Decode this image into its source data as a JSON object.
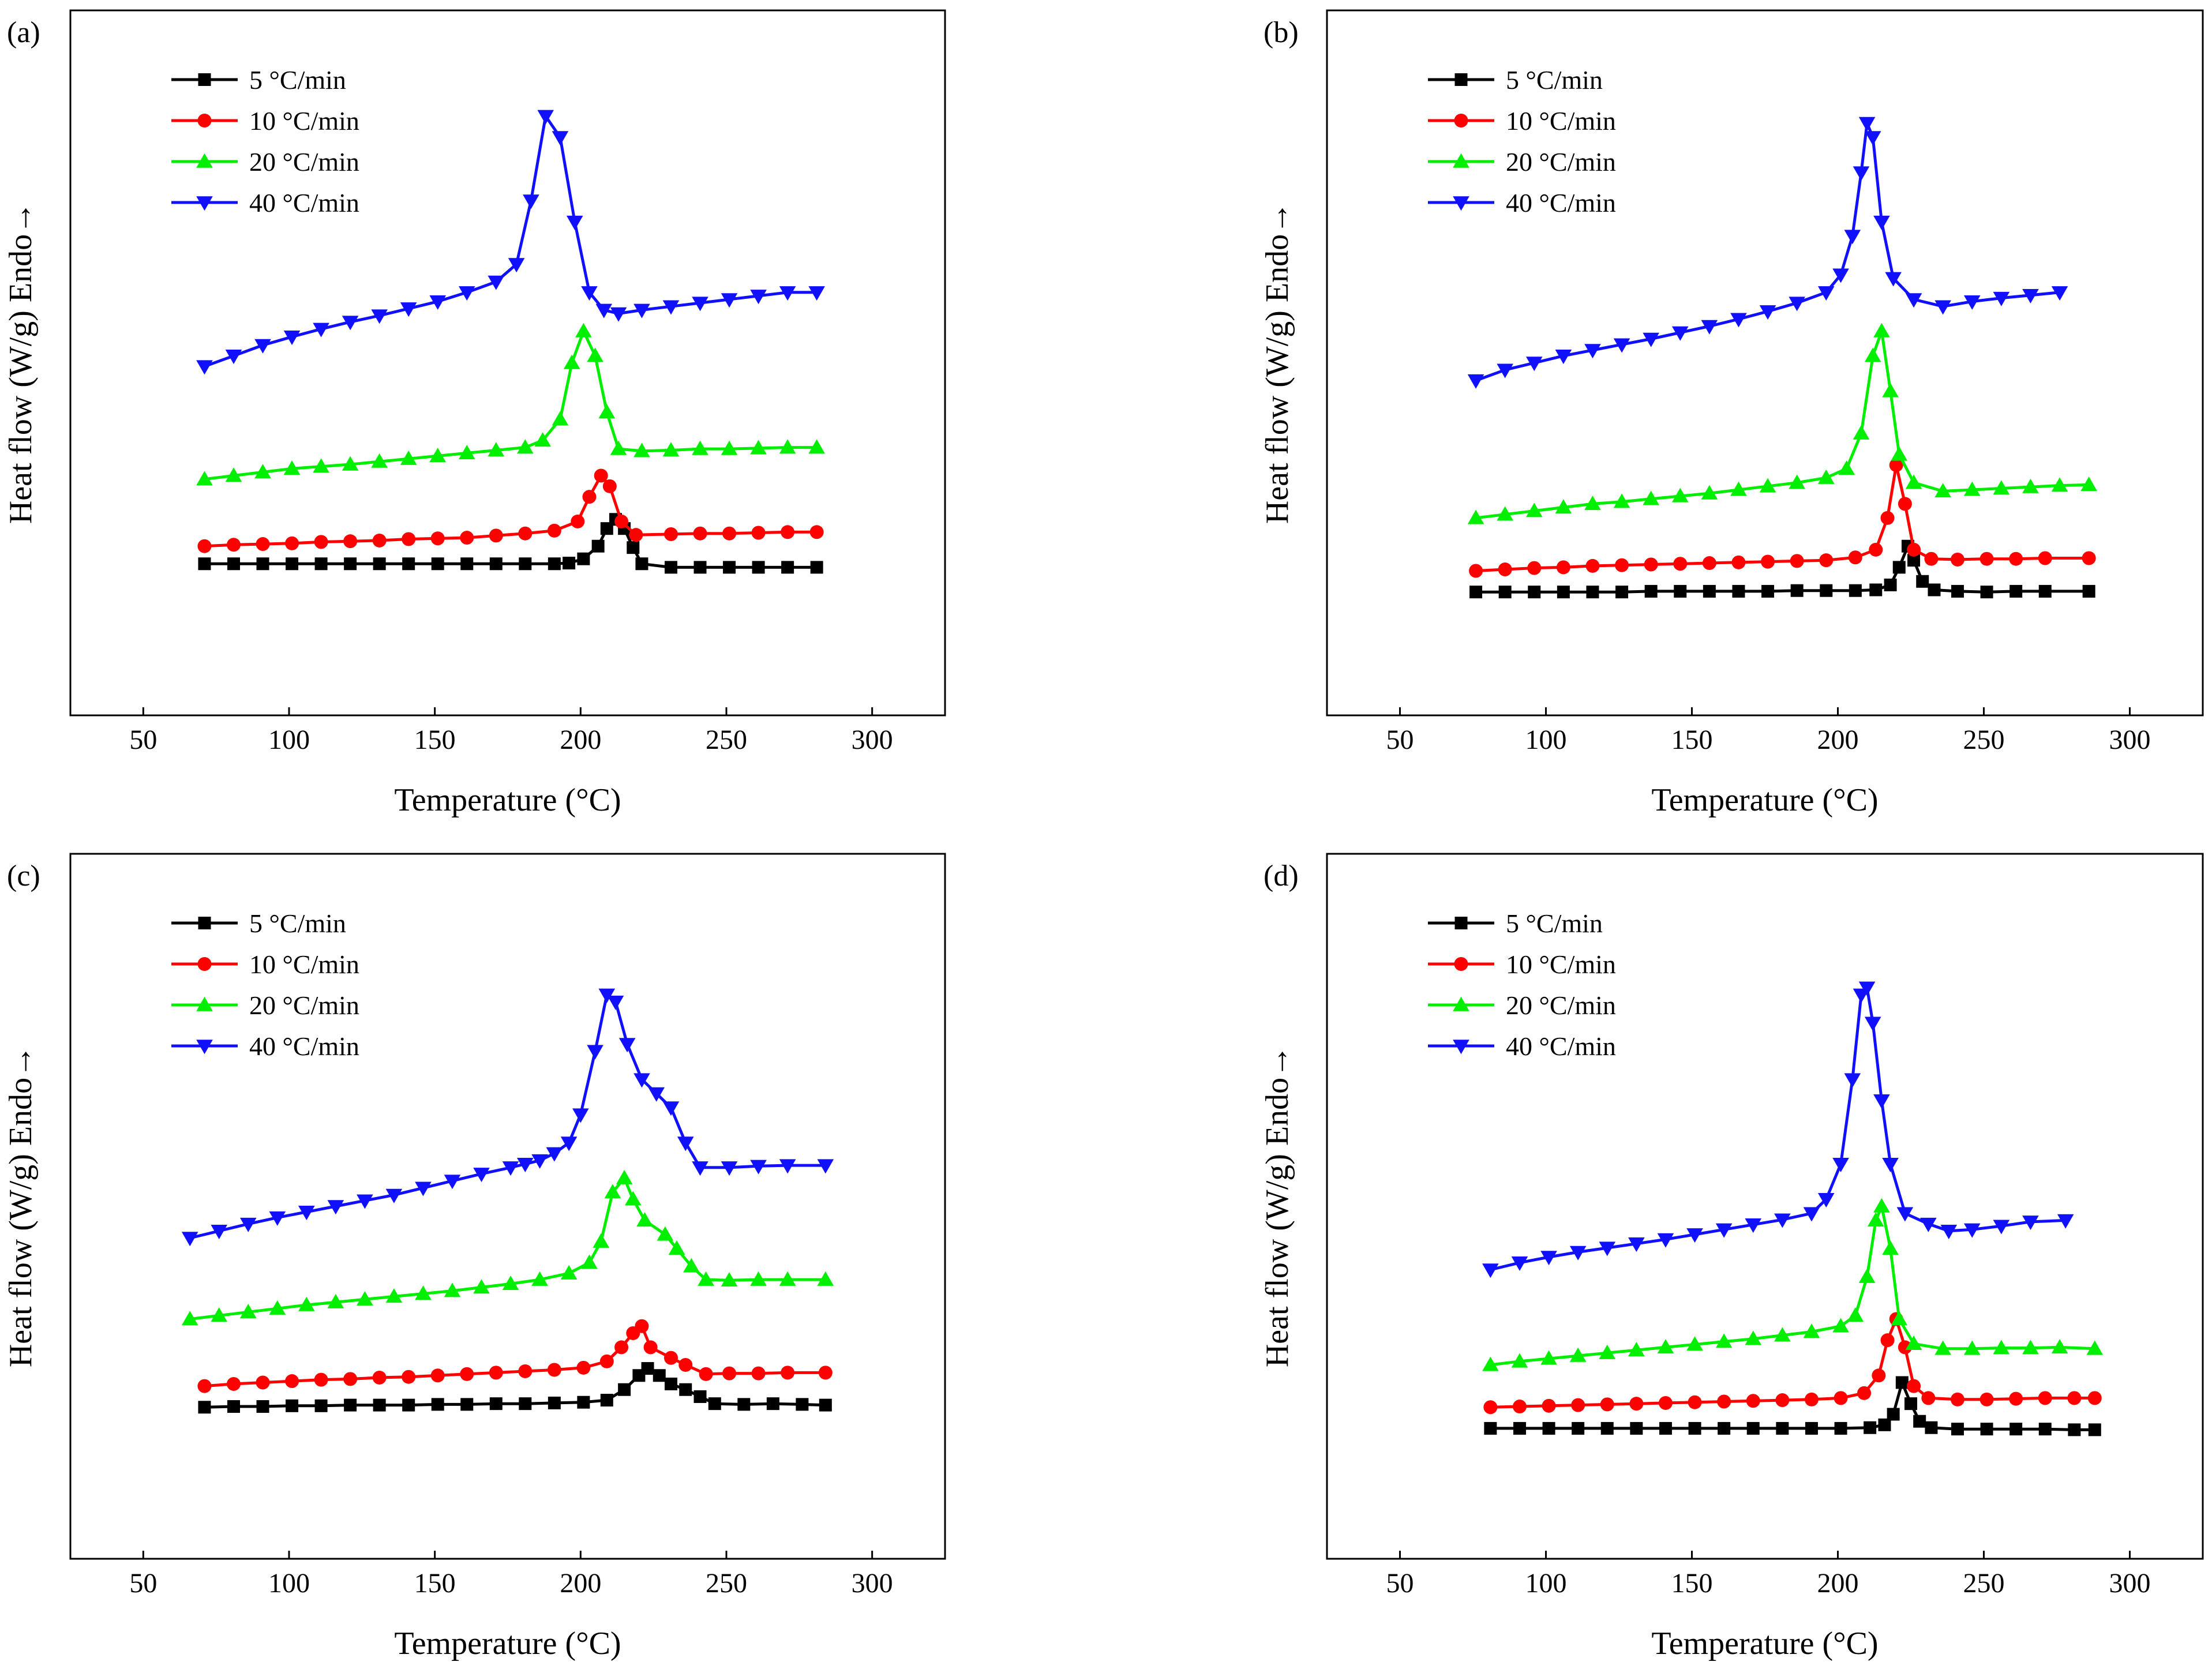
{
  "figure": {
    "layout": "2x2 grid of DSC heating curves"
  },
  "colors": {
    "black": "#000000",
    "red": "#ff0000",
    "green": "#00ee00",
    "blue": "#1010ff"
  },
  "chart_data": [
    {
      "panel": "(a)",
      "type": "line",
      "xlabel": "Temperature (°C)",
      "ylabel": "Heat flow (W/g) Endo→",
      "xlim": [
        25,
        325
      ],
      "xticks": [
        50,
        100,
        150,
        200,
        250,
        300
      ],
      "ylim": [
        0,
        1
      ],
      "y_ticks_shown": false,
      "legend_position": "top-left",
      "series": [
        {
          "name": "5 °C/min",
          "color": "black",
          "marker": "square",
          "x": [
            71,
            81,
            91,
            101,
            111,
            121,
            131,
            141,
            151,
            161,
            171,
            181,
            191,
            196,
            201,
            206,
            209,
            212,
            215,
            218,
            221,
            231,
            241,
            251,
            261,
            271,
            281
          ],
          "y": [
            0.215,
            0.215,
            0.215,
            0.215,
            0.215,
            0.215,
            0.215,
            0.215,
            0.215,
            0.215,
            0.215,
            0.215,
            0.215,
            0.216,
            0.222,
            0.24,
            0.265,
            0.278,
            0.265,
            0.238,
            0.215,
            0.21,
            0.21,
            0.21,
            0.21,
            0.21,
            0.21
          ]
        },
        {
          "name": "10 °C/min",
          "color": "red",
          "marker": "circle",
          "x": [
            71,
            81,
            91,
            101,
            111,
            121,
            131,
            141,
            151,
            161,
            171,
            181,
            191,
            199,
            203,
            207,
            210,
            214,
            219,
            231,
            241,
            251,
            261,
            271,
            281
          ],
          "y": [
            0.24,
            0.242,
            0.243,
            0.244,
            0.246,
            0.247,
            0.248,
            0.25,
            0.251,
            0.252,
            0.255,
            0.258,
            0.262,
            0.275,
            0.31,
            0.34,
            0.325,
            0.275,
            0.256,
            0.257,
            0.258,
            0.258,
            0.259,
            0.26,
            0.26
          ]
        },
        {
          "name": "20 °C/min",
          "color": "green",
          "marker": "triangle-up",
          "x": [
            71,
            81,
            91,
            101,
            111,
            121,
            131,
            141,
            151,
            161,
            171,
            181,
            187,
            193,
            197,
            201,
            205,
            209,
            213,
            221,
            231,
            241,
            251,
            261,
            271,
            281
          ],
          "y": [
            0.335,
            0.34,
            0.345,
            0.35,
            0.353,
            0.356,
            0.36,
            0.364,
            0.368,
            0.372,
            0.376,
            0.38,
            0.39,
            0.42,
            0.5,
            0.545,
            0.51,
            0.43,
            0.378,
            0.375,
            0.376,
            0.378,
            0.378,
            0.379,
            0.38,
            0.38
          ]
        },
        {
          "name": "40 °C/min",
          "color": "blue",
          "marker": "triangle-down",
          "x": [
            71,
            81,
            91,
            101,
            111,
            121,
            131,
            141,
            151,
            161,
            171,
            178,
            183,
            188,
            193,
            198,
            203,
            208,
            213,
            221,
            231,
            241,
            251,
            261,
            271,
            281
          ],
          "y": [
            0.495,
            0.51,
            0.525,
            0.537,
            0.548,
            0.558,
            0.567,
            0.577,
            0.587,
            0.6,
            0.615,
            0.64,
            0.73,
            0.85,
            0.82,
            0.7,
            0.6,
            0.575,
            0.57,
            0.575,
            0.58,
            0.585,
            0.59,
            0.595,
            0.6,
            0.6
          ]
        }
      ]
    },
    {
      "panel": "(b)",
      "type": "line",
      "xlabel": "Temperature (°C)",
      "ylabel": "Heat flow (W/g) Endo→",
      "xlim": [
        25,
        325
      ],
      "xticks": [
        50,
        100,
        150,
        200,
        250,
        300
      ],
      "ylim": [
        0,
        1
      ],
      "y_ticks_shown": false,
      "legend_position": "top-left",
      "series": [
        {
          "name": "5 °C/min",
          "color": "black",
          "marker": "square",
          "x": [
            76,
            86,
            96,
            106,
            116,
            126,
            136,
            146,
            156,
            166,
            176,
            186,
            196,
            206,
            213,
            218,
            221,
            224,
            226,
            229,
            233,
            241,
            251,
            261,
            271,
            286
          ],
          "y": [
            0.175,
            0.175,
            0.175,
            0.175,
            0.175,
            0.175,
            0.176,
            0.176,
            0.176,
            0.176,
            0.176,
            0.177,
            0.177,
            0.177,
            0.178,
            0.185,
            0.21,
            0.24,
            0.22,
            0.19,
            0.178,
            0.176,
            0.175,
            0.176,
            0.176,
            0.176
          ]
        },
        {
          "name": "10 °C/min",
          "color": "red",
          "marker": "circle",
          "x": [
            76,
            86,
            96,
            106,
            116,
            126,
            136,
            146,
            156,
            166,
            176,
            186,
            196,
            206,
            213,
            217,
            220,
            223,
            226,
            232,
            241,
            251,
            261,
            271,
            286
          ],
          "y": [
            0.205,
            0.207,
            0.209,
            0.21,
            0.212,
            0.213,
            0.214,
            0.215,
            0.216,
            0.217,
            0.218,
            0.219,
            0.22,
            0.224,
            0.235,
            0.28,
            0.355,
            0.3,
            0.235,
            0.222,
            0.221,
            0.222,
            0.222,
            0.223,
            0.223
          ]
        },
        {
          "name": "20 °C/min",
          "color": "green",
          "marker": "triangle-up",
          "x": [
            76,
            86,
            96,
            106,
            116,
            126,
            136,
            146,
            156,
            166,
            176,
            186,
            196,
            203,
            208,
            212,
            215,
            218,
            221,
            226,
            236,
            246,
            256,
            266,
            276,
            286
          ],
          "y": [
            0.28,
            0.285,
            0.29,
            0.295,
            0.3,
            0.303,
            0.307,
            0.311,
            0.315,
            0.32,
            0.325,
            0.33,
            0.337,
            0.35,
            0.4,
            0.51,
            0.545,
            0.46,
            0.37,
            0.33,
            0.318,
            0.32,
            0.322,
            0.324,
            0.326,
            0.327
          ]
        },
        {
          "name": "40 °C/min",
          "color": "blue",
          "marker": "triangle-down",
          "x": [
            76,
            86,
            96,
            106,
            116,
            126,
            136,
            146,
            156,
            166,
            176,
            186,
            196,
            201,
            205,
            208,
            210,
            212,
            215,
            219,
            226,
            236,
            246,
            256,
            266,
            276
          ],
          "y": [
            0.475,
            0.49,
            0.5,
            0.51,
            0.518,
            0.526,
            0.534,
            0.543,
            0.552,
            0.562,
            0.573,
            0.585,
            0.6,
            0.625,
            0.68,
            0.77,
            0.84,
            0.82,
            0.7,
            0.62,
            0.59,
            0.58,
            0.587,
            0.592,
            0.596,
            0.6
          ]
        }
      ]
    },
    {
      "panel": "(c)",
      "type": "line",
      "xlabel": "Temperature (°C)",
      "ylabel": "Heat flow (W/g) Endo→",
      "xlim": [
        25,
        325
      ],
      "xticks": [
        50,
        100,
        150,
        200,
        250,
        300
      ],
      "ylim": [
        0,
        1
      ],
      "y_ticks_shown": false,
      "legend_position": "top-left",
      "series": [
        {
          "name": "5 °C/min",
          "color": "black",
          "marker": "square",
          "x": [
            71,
            81,
            91,
            101,
            111,
            121,
            131,
            141,
            151,
            161,
            171,
            181,
            191,
            201,
            209,
            215,
            220,
            223,
            227,
            231,
            236,
            241,
            246,
            256,
            266,
            276,
            284
          ],
          "y": [
            0.215,
            0.216,
            0.216,
            0.217,
            0.217,
            0.218,
            0.218,
            0.218,
            0.219,
            0.219,
            0.22,
            0.22,
            0.221,
            0.222,
            0.225,
            0.24,
            0.26,
            0.27,
            0.26,
            0.248,
            0.24,
            0.23,
            0.22,
            0.219,
            0.22,
            0.219,
            0.218
          ]
        },
        {
          "name": "10 °C/min",
          "color": "red",
          "marker": "circle",
          "x": [
            71,
            81,
            91,
            101,
            111,
            121,
            131,
            141,
            151,
            161,
            171,
            181,
            191,
            201,
            209,
            214,
            218,
            221,
            224,
            231,
            236,
            243,
            251,
            261,
            271,
            284
          ],
          "y": [
            0.245,
            0.248,
            0.25,
            0.252,
            0.254,
            0.255,
            0.257,
            0.258,
            0.26,
            0.262,
            0.264,
            0.266,
            0.268,
            0.271,
            0.28,
            0.3,
            0.32,
            0.33,
            0.3,
            0.285,
            0.275,
            0.262,
            0.263,
            0.263,
            0.264,
            0.264
          ]
        },
        {
          "name": "20 °C/min",
          "color": "green",
          "marker": "triangle-up",
          "x": [
            66,
            76,
            86,
            96,
            106,
            116,
            126,
            136,
            146,
            156,
            166,
            176,
            186,
            196,
            203,
            207,
            211,
            215,
            218,
            222,
            229,
            233,
            238,
            243,
            251,
            261,
            271,
            284
          ],
          "y": [
            0.34,
            0.345,
            0.35,
            0.355,
            0.36,
            0.364,
            0.368,
            0.372,
            0.376,
            0.38,
            0.385,
            0.39,
            0.396,
            0.405,
            0.42,
            0.45,
            0.52,
            0.54,
            0.51,
            0.48,
            0.46,
            0.44,
            0.415,
            0.396,
            0.395,
            0.396,
            0.396,
            0.396
          ]
        },
        {
          "name": "40 °C/min",
          "color": "blue",
          "marker": "triangle-down",
          "x": [
            66,
            76,
            86,
            96,
            106,
            116,
            126,
            136,
            146,
            156,
            166,
            176,
            181,
            186,
            191,
            196,
            200,
            205,
            209,
            212,
            216,
            221,
            226,
            231,
            236,
            241,
            251,
            261,
            271,
            284
          ],
          "y": [
            0.455,
            0.465,
            0.475,
            0.484,
            0.492,
            0.5,
            0.508,
            0.516,
            0.526,
            0.536,
            0.546,
            0.555,
            0.56,
            0.565,
            0.575,
            0.59,
            0.63,
            0.72,
            0.8,
            0.79,
            0.73,
            0.68,
            0.66,
            0.64,
            0.59,
            0.555,
            0.555,
            0.557,
            0.558,
            0.558
          ]
        }
      ]
    },
    {
      "panel": "(d)",
      "type": "line",
      "xlabel": "Temperature (°C)",
      "ylabel": "Heat flow (W/g) Endo→",
      "xlim": [
        25,
        325
      ],
      "xticks": [
        50,
        100,
        150,
        200,
        250,
        300
      ],
      "ylim": [
        0,
        1
      ],
      "y_ticks_shown": false,
      "legend_position": "top-left",
      "series": [
        {
          "name": "5 °C/min",
          "color": "black",
          "marker": "square",
          "x": [
            81,
            91,
            101,
            111,
            121,
            131,
            141,
            151,
            161,
            171,
            181,
            191,
            201,
            211,
            216,
            219,
            222,
            225,
            228,
            232,
            241,
            251,
            261,
            271,
            281,
            288
          ],
          "y": [
            0.185,
            0.185,
            0.185,
            0.185,
            0.185,
            0.185,
            0.185,
            0.185,
            0.185,
            0.185,
            0.185,
            0.185,
            0.185,
            0.186,
            0.19,
            0.205,
            0.25,
            0.22,
            0.195,
            0.186,
            0.184,
            0.184,
            0.184,
            0.184,
            0.183,
            0.183
          ]
        },
        {
          "name": "10 °C/min",
          "color": "red",
          "marker": "circle",
          "x": [
            81,
            91,
            101,
            111,
            121,
            131,
            141,
            151,
            161,
            171,
            181,
            191,
            201,
            209,
            214,
            217,
            220,
            223,
            226,
            231,
            241,
            251,
            261,
            271,
            281,
            288
          ],
          "y": [
            0.215,
            0.216,
            0.217,
            0.218,
            0.219,
            0.22,
            0.221,
            0.222,
            0.223,
            0.224,
            0.225,
            0.226,
            0.228,
            0.235,
            0.26,
            0.31,
            0.34,
            0.3,
            0.245,
            0.228,
            0.226,
            0.226,
            0.227,
            0.228,
            0.228,
            0.228
          ]
        },
        {
          "name": "20 °C/min",
          "color": "green",
          "marker": "triangle-up",
          "x": [
            81,
            91,
            101,
            111,
            121,
            131,
            141,
            151,
            161,
            171,
            181,
            191,
            201,
            206,
            210,
            213,
            215,
            218,
            221,
            226,
            236,
            246,
            256,
            266,
            276,
            288
          ],
          "y": [
            0.275,
            0.28,
            0.284,
            0.288,
            0.292,
            0.296,
            0.3,
            0.304,
            0.308,
            0.312,
            0.317,
            0.322,
            0.33,
            0.345,
            0.4,
            0.48,
            0.5,
            0.44,
            0.34,
            0.305,
            0.298,
            0.298,
            0.299,
            0.299,
            0.3,
            0.298
          ]
        },
        {
          "name": "40 °C/min",
          "color": "blue",
          "marker": "triangle-down",
          "x": [
            81,
            91,
            101,
            111,
            121,
            131,
            141,
            151,
            161,
            171,
            181,
            191,
            196,
            201,
            205,
            208,
            210,
            212,
            215,
            218,
            223,
            231,
            238,
            246,
            256,
            266,
            278
          ],
          "y": [
            0.41,
            0.42,
            0.428,
            0.435,
            0.441,
            0.447,
            0.453,
            0.46,
            0.467,
            0.474,
            0.481,
            0.49,
            0.51,
            0.56,
            0.68,
            0.8,
            0.81,
            0.76,
            0.65,
            0.56,
            0.49,
            0.475,
            0.465,
            0.467,
            0.472,
            0.478,
            0.48
          ]
        }
      ]
    }
  ]
}
